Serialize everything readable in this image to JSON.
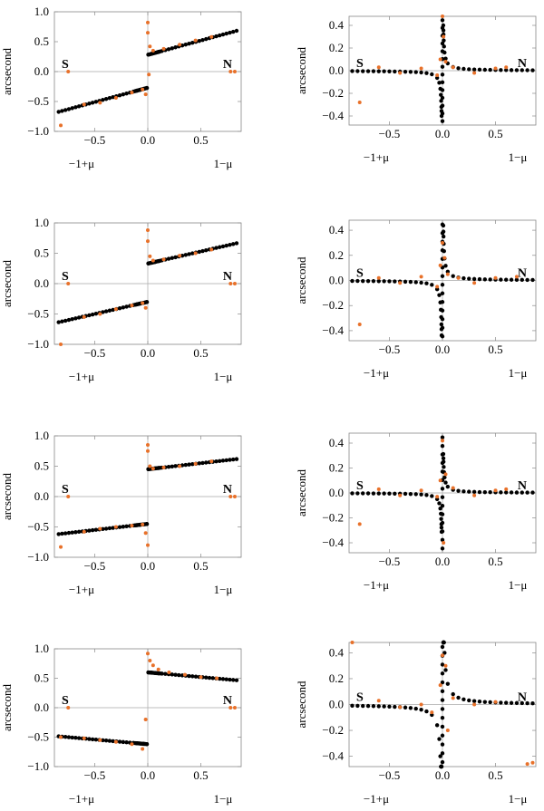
{
  "style": {
    "model_color": "#000000",
    "data_color": "#e8712a",
    "frame_color": "#888888"
  },
  "chart_data": [
    {
      "type": "scatter",
      "panel": "row1-left",
      "ylabel": "arcsecond",
      "xlim": [
        -0.88,
        0.88
      ],
      "ylim": [
        -1.0,
        1.0
      ],
      "xticks": [
        -0.5,
        0.0,
        0.5
      ],
      "xtick_labels": [
        "−0.5",
        "0.0",
        "0.5"
      ],
      "yticks": [
        -1.0,
        -0.5,
        0.0,
        0.5,
        1.0
      ],
      "ytick_labels": [
        "−1.0",
        "−0.5",
        "0.0",
        "0.5",
        "1.0"
      ],
      "left_label": "S",
      "right_label": "N",
      "bottom_left_label": "−1+μ",
      "bottom_right_label": "1−μ",
      "model": {
        "kind": "linear",
        "neg_intercept": -0.27,
        "pos_intercept": 0.28,
        "slope": 0.48
      },
      "series": [
        {
          "values": [
            [
              -0.82,
              -0.9
            ],
            [
              -0.75,
              0.0
            ],
            [
              -0.6,
              -0.55
            ],
            [
              -0.45,
              -0.52
            ],
            [
              -0.3,
              -0.44
            ],
            [
              -0.15,
              -0.35
            ],
            [
              -0.05,
              -0.3
            ],
            [
              -0.02,
              -0.38
            ],
            [
              0.0,
              0.82
            ],
            [
              0.0,
              0.65
            ],
            [
              0.01,
              -0.05
            ],
            [
              0.02,
              0.42
            ],
            [
              0.05,
              0.35
            ],
            [
              0.15,
              0.38
            ],
            [
              0.3,
              0.45
            ],
            [
              0.45,
              0.52
            ],
            [
              0.6,
              0.58
            ],
            [
              0.78,
              0.0
            ],
            [
              0.82,
              0.0
            ]
          ]
        }
      ]
    },
    {
      "type": "scatter",
      "panel": "row1-right",
      "ylabel": "arcsecond",
      "xlim": [
        -0.88,
        0.88
      ],
      "ylim": [
        -0.48,
        0.48
      ],
      "xticks": [
        -0.5,
        0.0,
        0.5
      ],
      "xtick_labels": [
        "−0.5",
        "0.0",
        "0.5"
      ],
      "yticks": [
        -0.4,
        -0.2,
        0.0,
        0.2,
        0.4
      ],
      "ytick_labels": [
        "−0.4",
        "−0.2",
        "0.0",
        "0.2",
        "0.4"
      ],
      "left_label": "S",
      "right_label": "N",
      "bottom_left_label": "−1+μ",
      "bottom_right_label": "1−μ",
      "model": {
        "kind": "singular",
        "amplitude": 0.0032
      },
      "series": [
        {
          "values": [
            [
              -0.78,
              -0.28
            ],
            [
              -0.6,
              0.03
            ],
            [
              -0.4,
              -0.02
            ],
            [
              -0.2,
              0.02
            ],
            [
              -0.05,
              -0.04
            ],
            [
              -0.02,
              0.1
            ],
            [
              0.0,
              0.48
            ],
            [
              0.01,
              0.3
            ],
            [
              0.03,
              0.08
            ],
            [
              0.1,
              0.03
            ],
            [
              0.3,
              -0.02
            ],
            [
              0.5,
              0.02
            ],
            [
              0.6,
              0.03
            ]
          ]
        }
      ]
    },
    {
      "type": "scatter",
      "panel": "row2-left",
      "ylabel": "arcsecond",
      "xlim": [
        -0.88,
        0.88
      ],
      "ylim": [
        -1.0,
        1.0
      ],
      "xticks": [
        -0.5,
        0.0,
        0.5
      ],
      "xtick_labels": [
        "−0.5",
        "0.0",
        "0.5"
      ],
      "yticks": [
        -1.0,
        -0.5,
        0.0,
        0.5,
        1.0
      ],
      "ytick_labels": [
        "−1.0",
        "−0.5",
        "0.0",
        "0.5",
        "1.0"
      ],
      "left_label": "S",
      "right_label": "N",
      "bottom_left_label": "−1+μ",
      "bottom_right_label": "1−μ",
      "model": {
        "kind": "linear",
        "neg_intercept": -0.3,
        "pos_intercept": 0.33,
        "slope": 0.4
      },
      "series": [
        {
          "values": [
            [
              -0.82,
              -1.0
            ],
            [
              -0.75,
              0.0
            ],
            [
              -0.6,
              -0.55
            ],
            [
              -0.45,
              -0.5
            ],
            [
              -0.3,
              -0.42
            ],
            [
              -0.15,
              -0.36
            ],
            [
              -0.05,
              -0.32
            ],
            [
              -0.02,
              -0.4
            ],
            [
              0.0,
              0.88
            ],
            [
              0.0,
              0.7
            ],
            [
              0.02,
              0.45
            ],
            [
              0.05,
              0.38
            ],
            [
              0.15,
              0.4
            ],
            [
              0.3,
              0.46
            ],
            [
              0.45,
              0.5
            ],
            [
              0.6,
              0.56
            ],
            [
              0.78,
              0.0
            ],
            [
              0.82,
              0.0
            ]
          ]
        }
      ]
    },
    {
      "type": "scatter",
      "panel": "row2-right",
      "ylabel": "arcsecond",
      "xlim": [
        -0.88,
        0.88
      ],
      "ylim": [
        -0.48,
        0.48
      ],
      "xticks": [
        -0.5,
        0.0,
        0.5
      ],
      "xtick_labels": [
        "−0.5",
        "0.0",
        "0.5"
      ],
      "yticks": [
        -0.4,
        -0.2,
        0.0,
        0.2,
        0.4
      ],
      "ytick_labels": [
        "−0.4",
        "−0.2",
        "0.0",
        "0.2",
        "0.4"
      ],
      "left_label": "S",
      "right_label": "N",
      "bottom_left_label": "−1+μ",
      "bottom_right_label": "1−μ",
      "model": {
        "kind": "singular",
        "amplitude": 0.0035
      },
      "series": [
        {
          "values": [
            [
              -0.78,
              -0.35
            ],
            [
              -0.6,
              0.02
            ],
            [
              -0.4,
              -0.02
            ],
            [
              -0.2,
              0.03
            ],
            [
              -0.05,
              -0.05
            ],
            [
              -0.02,
              0.12
            ],
            [
              0.0,
              0.3
            ],
            [
              0.02,
              0.18
            ],
            [
              0.05,
              0.05
            ],
            [
              0.15,
              0.02
            ],
            [
              0.3,
              -0.02
            ],
            [
              0.5,
              0.02
            ],
            [
              0.7,
              0.03
            ]
          ]
        }
      ]
    },
    {
      "type": "scatter",
      "panel": "row3-left",
      "ylabel": "arcsecond",
      "xlim": [
        -0.88,
        0.88
      ],
      "ylim": [
        -1.0,
        1.0
      ],
      "xticks": [
        -0.5,
        0.0,
        0.5
      ],
      "xtick_labels": [
        "−0.5",
        "0.0",
        "0.5"
      ],
      "yticks": [
        -1.0,
        -0.5,
        0.0,
        0.5,
        1.0
      ],
      "ytick_labels": [
        "−1.0",
        "−0.5",
        "0.0",
        "0.5",
        "1.0"
      ],
      "left_label": "S",
      "right_label": "N",
      "bottom_left_label": "−1+μ",
      "bottom_right_label": "1−μ",
      "model": {
        "kind": "linear",
        "neg_intercept": -0.45,
        "pos_intercept": 0.45,
        "slope": 0.2
      },
      "series": [
        {
          "values": [
            [
              -0.82,
              -0.83
            ],
            [
              -0.75,
              0.0
            ],
            [
              -0.6,
              -0.58
            ],
            [
              -0.45,
              -0.53
            ],
            [
              -0.3,
              -0.5
            ],
            [
              -0.15,
              -0.48
            ],
            [
              -0.05,
              -0.46
            ],
            [
              -0.02,
              -0.6
            ],
            [
              0.0,
              0.85
            ],
            [
              0.0,
              0.75
            ],
            [
              0.0,
              -0.8
            ],
            [
              0.02,
              0.5
            ],
            [
              0.05,
              0.46
            ],
            [
              0.15,
              0.48
            ],
            [
              0.3,
              0.5
            ],
            [
              0.45,
              0.54
            ],
            [
              0.6,
              0.58
            ],
            [
              0.78,
              0.0
            ],
            [
              0.82,
              0.0
            ]
          ]
        }
      ]
    },
    {
      "type": "scatter",
      "panel": "row3-right",
      "ylabel": "arcsecond",
      "xlim": [
        -0.88,
        0.88
      ],
      "ylim": [
        -0.48,
        0.48
      ],
      "xticks": [
        -0.5,
        0.0,
        0.5
      ],
      "xtick_labels": [
        "−0.5",
        "0.0",
        "0.5"
      ],
      "yticks": [
        -0.4,
        -0.2,
        0.0,
        0.2,
        0.4
      ],
      "ytick_labels": [
        "−0.4",
        "−0.2",
        "0.0",
        "0.2",
        "0.4"
      ],
      "left_label": "S",
      "right_label": "N",
      "bottom_left_label": "−1+μ",
      "bottom_right_label": "1−μ",
      "model": {
        "kind": "singular",
        "amplitude": 0.0025
      },
      "series": [
        {
          "values": [
            [
              -0.78,
              -0.25
            ],
            [
              -0.6,
              0.03
            ],
            [
              -0.4,
              -0.02
            ],
            [
              -0.2,
              0.02
            ],
            [
              -0.05,
              -0.03
            ],
            [
              -0.02,
              0.1
            ],
            [
              0.0,
              0.42
            ],
            [
              0.01,
              -0.4
            ],
            [
              0.03,
              0.15
            ],
            [
              0.1,
              0.04
            ],
            [
              0.3,
              -0.02
            ],
            [
              0.5,
              0.02
            ],
            [
              0.6,
              0.03
            ]
          ]
        }
      ]
    },
    {
      "type": "scatter",
      "panel": "row4-left",
      "ylabel": "arcsecond",
      "xlim": [
        -0.88,
        0.88
      ],
      "ylim": [
        -1.0,
        1.0
      ],
      "xticks": [
        -0.5,
        0.0,
        0.5
      ],
      "xtick_labels": [
        "−0.5",
        "0.0",
        "0.5"
      ],
      "yticks": [
        -1.0,
        -0.5,
        0.0,
        0.5,
        1.0
      ],
      "ytick_labels": [
        "−1.0",
        "−0.5",
        "0.0",
        "0.5",
        "1.0"
      ],
      "left_label": "S",
      "right_label": "N",
      "bottom_left_label": "−1+μ",
      "bottom_right_label": "1−μ",
      "model": {
        "kind": "linear",
        "neg_intercept": -0.62,
        "pos_intercept": 0.6,
        "slope": -0.16
      },
      "series": [
        {
          "values": [
            [
              -0.82,
              -0.5
            ],
            [
              -0.75,
              0.0
            ],
            [
              -0.6,
              -0.52
            ],
            [
              -0.45,
              -0.55
            ],
            [
              -0.3,
              -0.58
            ],
            [
              -0.15,
              -0.62
            ],
            [
              -0.05,
              -0.7
            ],
            [
              -0.02,
              -0.2
            ],
            [
              0.0,
              0.92
            ],
            [
              0.02,
              0.8
            ],
            [
              0.05,
              0.72
            ],
            [
              0.1,
              0.65
            ],
            [
              0.2,
              0.6
            ],
            [
              0.35,
              0.56
            ],
            [
              0.5,
              0.52
            ],
            [
              0.65,
              0.5
            ],
            [
              0.78,
              0.0
            ],
            [
              0.82,
              0.0
            ]
          ]
        }
      ]
    },
    {
      "type": "scatter",
      "panel": "row4-right",
      "ylabel": "arcsecond",
      "xlim": [
        -0.88,
        0.88
      ],
      "ylim": [
        -0.48,
        0.48
      ],
      "xticks": [
        -0.5,
        0.0,
        0.5
      ],
      "xtick_labels": [
        "−0.5",
        "0.0",
        "0.5"
      ],
      "yticks": [
        -0.4,
        -0.2,
        0.0,
        0.2,
        0.4
      ],
      "ytick_labels": [
        "−0.4",
        "−0.2",
        "0.0",
        "0.2",
        "0.4"
      ],
      "left_label": "S",
      "right_label": "N",
      "bottom_left_label": "−1+μ",
      "bottom_right_label": "1−μ",
      "model": {
        "kind": "singular",
        "amplitude": 0.008
      },
      "series": [
        {
          "values": [
            [
              -0.85,
              0.48
            ],
            [
              -0.6,
              0.03
            ],
            [
              -0.4,
              -0.02
            ],
            [
              -0.2,
              0.0
            ],
            [
              -0.1,
              -0.06
            ],
            [
              -0.02,
              0.15
            ],
            [
              0.0,
              0.38
            ],
            [
              0.03,
              0.3
            ],
            [
              0.05,
              -0.2
            ],
            [
              0.1,
              0.05
            ],
            [
              0.3,
              0.0
            ],
            [
              0.5,
              0.02
            ],
            [
              0.85,
              -0.45
            ],
            [
              0.8,
              -0.46
            ]
          ]
        }
      ]
    }
  ]
}
